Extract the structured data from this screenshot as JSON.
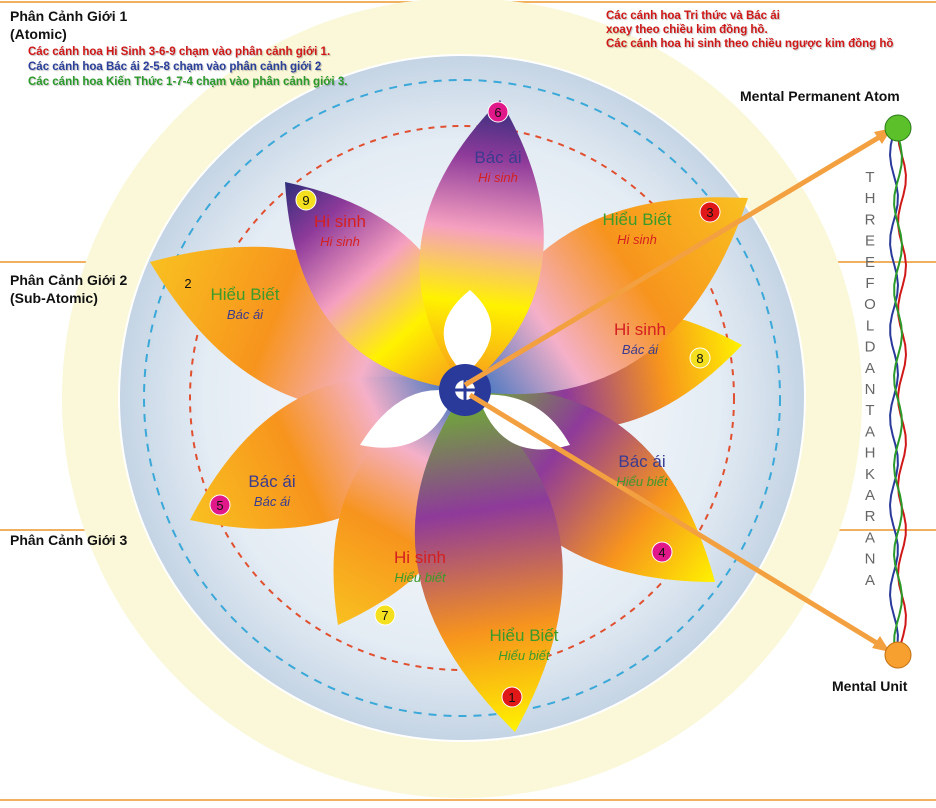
{
  "zones": [
    {
      "title": "Phân Cảnh Giới 1",
      "subtitle": "(Atomic)"
    },
    {
      "title": "Phân Cảnh Giới 2",
      "subtitle": "(Sub-Atomic)"
    },
    {
      "title": "Phân Cảnh Giới 3",
      "subtitle": ""
    }
  ],
  "legend_left": [
    {
      "text": "Các cánh hoa Hi Sinh 3-6-9 chạm vào phân cảnh giới 1.",
      "color": "#d01818"
    },
    {
      "text": "Các cánh hoa Bác ái 2-5-8 chạm vào phân cảnh giới 2",
      "color": "#2a3f9a"
    },
    {
      "text": "Các cánh hoa Kiến Thức 1-7-4 chạm vào phân cảnh giới 3.",
      "color": "#2a9a2a"
    }
  ],
  "legend_right": [
    "Các cánh hoa Tri thức và Bác ái",
    "xoay theo chiều kim đồng hồ.",
    "Các cánh hoa hi sinh theo chiều ngược kim đồng hồ"
  ],
  "legend_right_color": "#d01818",
  "mental_permanent_atom": "Mental Permanent Atom",
  "mental_unit": "Mental Unit",
  "antahkarana_letters": [
    "T",
    "H",
    "R",
    "E",
    "E",
    "F",
    "O",
    "L",
    "D",
    "A",
    "N",
    "T",
    "A",
    "H",
    "K",
    "A",
    "R",
    "A",
    "N",
    "A"
  ],
  "colors": {
    "hi_sinh": "#d42020",
    "hieu_biet": "#3a9a2a",
    "bac_ai": "#3b3b8f",
    "zone_line": "#f0b060",
    "dash_outer": "#3aa8d8",
    "dash_inner": "#e05030"
  },
  "petals": [
    {
      "number": "2",
      "label": "Hiểu Biết",
      "sublabel": "Bác ái",
      "badge": "none"
    },
    {
      "number": "5",
      "label": "Bác ái",
      "sublabel": "Bác ái",
      "badge": "#e0188a"
    },
    {
      "number": "8",
      "label": "Hi sinh",
      "sublabel": "Bác ái",
      "badge": "#f5e020"
    },
    {
      "number": "4",
      "label": "Bác ái",
      "sublabel": "Hiểu biết",
      "badge": "#e0188a"
    },
    {
      "number": "7",
      "label": "Hi sinh",
      "sublabel": "Hiểu biết",
      "badge": "#f5e020"
    },
    {
      "number": "1",
      "label": "Hiểu Biết",
      "sublabel": "Hiểu biết",
      "badge": "#e01818"
    },
    {
      "number": "3",
      "label": "Hiểu Biết",
      "sublabel": "Hi sinh",
      "badge": "#e01818"
    },
    {
      "number": "9",
      "label": "Hi sinh",
      "sublabel": "Hi sinh",
      "badge": "#f5e020"
    },
    {
      "number": "6",
      "label": "Bác ái",
      "sublabel": "Hi sinh",
      "badge": "#e0188a"
    }
  ]
}
